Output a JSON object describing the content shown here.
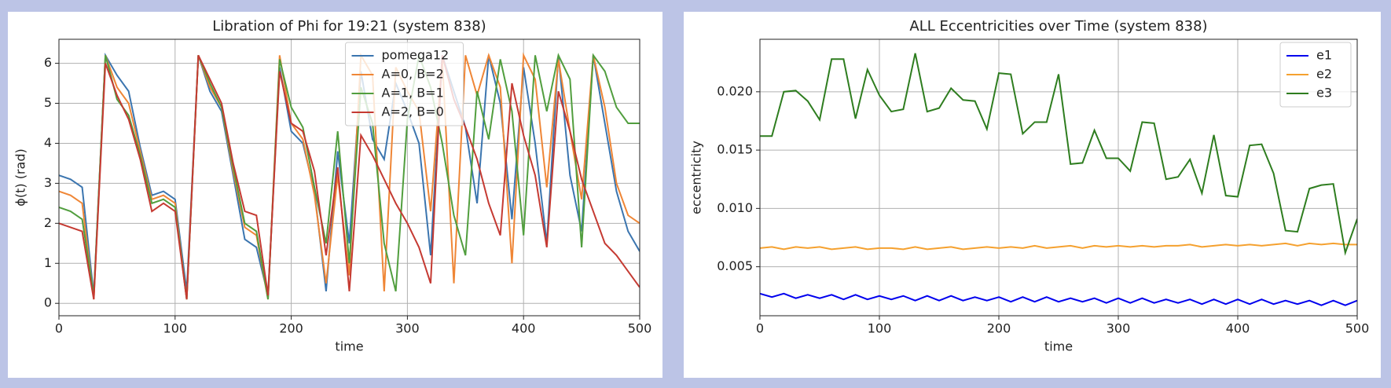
{
  "chart_data": [
    {
      "type": "line",
      "title": "Libration of Phi for 19:21 (system 838)",
      "xlabel": "time",
      "ylabel": "ϕ(t) (rad)",
      "x": [
        0,
        10,
        20,
        30,
        40,
        50,
        60,
        70,
        80,
        90,
        100,
        110,
        120,
        130,
        140,
        150,
        160,
        170,
        180,
        190,
        200,
        210,
        220,
        230,
        240,
        250,
        260,
        270,
        280,
        290,
        300,
        310,
        320,
        330,
        340,
        350,
        360,
        370,
        380,
        390,
        400,
        410,
        420,
        430,
        440,
        450,
        460,
        470,
        480,
        490,
        500
      ],
      "series": [
        {
          "name": "pomega12",
          "color": "#3b75af",
          "values": [
            3.2,
            3.1,
            2.9,
            0.2,
            6.2,
            5.7,
            5.3,
            3.9,
            2.7,
            2.8,
            2.6,
            0.3,
            6.2,
            5.3,
            4.8,
            3.2,
            1.6,
            1.4,
            0.2,
            5.9,
            4.3,
            4.0,
            2.8,
            0.3,
            3.8,
            1.5,
            5.8,
            4.1,
            3.6,
            5.5,
            4.8,
            4.0,
            1.2,
            6.2,
            5.3,
            4.4,
            2.5,
            6.2,
            5.0,
            2.1,
            5.9,
            4.0,
            1.5,
            6.2,
            3.2,
            1.8,
            6.2,
            4.5,
            2.8,
            1.8,
            1.3
          ]
        },
        {
          "name": "A=0, B=2",
          "color": "#ef8636",
          "values": [
            2.8,
            2.7,
            2.5,
            0.1,
            6.2,
            5.4,
            5.0,
            3.8,
            2.6,
            2.7,
            2.5,
            0.1,
            6.2,
            5.4,
            4.9,
            3.3,
            1.9,
            1.7,
            0.1,
            6.2,
            4.5,
            4.1,
            2.7,
            0.5,
            3.2,
            0.7,
            6.2,
            5.7,
            0.3,
            5.9,
            5.3,
            4.8,
            2.3,
            6.1,
            0.5,
            6.2,
            5.2,
            6.2,
            5.4,
            1.0,
            6.2,
            5.6,
            2.9,
            6.1,
            4.3,
            2.6,
            6.2,
            4.9,
            3.0,
            2.2,
            2.0
          ]
        },
        {
          "name": "A=1, B=1",
          "color": "#519e3e",
          "values": [
            2.4,
            2.3,
            2.1,
            0.2,
            6.2,
            5.1,
            4.7,
            3.7,
            2.5,
            2.6,
            2.4,
            0.1,
            6.2,
            5.5,
            4.9,
            3.4,
            2.0,
            1.8,
            0.1,
            6.1,
            4.9,
            4.4,
            2.9,
            1.5,
            4.3,
            1.0,
            5.4,
            4.5,
            1.5,
            0.3,
            4.6,
            6.2,
            5.4,
            4.0,
            2.2,
            1.2,
            5.3,
            4.1,
            6.1,
            4.8,
            1.7,
            6.2,
            4.8,
            6.2,
            5.6,
            1.4,
            6.2,
            5.8,
            4.9,
            4.5,
            4.5
          ]
        },
        {
          "name": "A=2, B=0",
          "color": "#c53a32",
          "values": [
            2.0,
            1.9,
            1.8,
            0.1,
            6.0,
            5.2,
            4.6,
            3.6,
            2.3,
            2.5,
            2.3,
            0.1,
            6.2,
            5.6,
            5.0,
            3.5,
            2.3,
            2.2,
            0.2,
            5.8,
            4.5,
            4.3,
            3.3,
            1.2,
            3.4,
            0.3,
            4.2,
            3.7,
            3.1,
            2.5,
            2.0,
            1.4,
            0.5,
            6.2,
            5.1,
            4.4,
            3.6,
            2.5,
            1.7,
            5.5,
            4.2,
            3.2,
            1.4,
            5.3,
            4.3,
            3.1,
            2.3,
            1.5,
            1.2,
            0.8,
            0.4
          ]
        }
      ],
      "xlim": [
        0,
        500
      ],
      "xticks": [
        0,
        100,
        200,
        300,
        400,
        500
      ],
      "ylim": [
        -0.31,
        6.6
      ],
      "yticks": [
        0,
        1,
        2,
        3,
        4,
        5,
        6
      ],
      "grid": true,
      "legend": "upper center"
    },
    {
      "type": "line",
      "title": "ALL Eccentricities over Time (system 838)",
      "xlabel": "time",
      "ylabel": "eccentricity",
      "x": [
        0,
        10,
        20,
        30,
        40,
        50,
        60,
        70,
        80,
        90,
        100,
        110,
        120,
        130,
        140,
        150,
        160,
        170,
        180,
        190,
        200,
        210,
        220,
        230,
        240,
        250,
        260,
        270,
        280,
        290,
        300,
        310,
        320,
        330,
        340,
        350,
        360,
        370,
        380,
        390,
        400,
        410,
        420,
        430,
        440,
        450,
        460,
        470,
        480,
        490,
        500
      ],
      "series": [
        {
          "name": "e1",
          "color": "#0000ee",
          "values": [
            0.0027,
            0.0024,
            0.0027,
            0.0023,
            0.0026,
            0.0023,
            0.0026,
            0.0022,
            0.0026,
            0.0022,
            0.0025,
            0.0022,
            0.0025,
            0.0021,
            0.0025,
            0.0021,
            0.0025,
            0.0021,
            0.0024,
            0.0021,
            0.0024,
            0.002,
            0.0024,
            0.002,
            0.0024,
            0.002,
            0.0023,
            0.002,
            0.0023,
            0.0019,
            0.0023,
            0.0019,
            0.0023,
            0.0019,
            0.0022,
            0.0019,
            0.0022,
            0.0018,
            0.0022,
            0.0018,
            0.0022,
            0.0018,
            0.0022,
            0.0018,
            0.0021,
            0.0018,
            0.0021,
            0.0017,
            0.0021,
            0.0017,
            0.0021
          ]
        },
        {
          "name": "e2",
          "color": "#f5a12f",
          "values": [
            0.0066,
            0.0067,
            0.0065,
            0.0067,
            0.0066,
            0.0067,
            0.0065,
            0.0066,
            0.0067,
            0.0065,
            0.0066,
            0.0066,
            0.0065,
            0.0067,
            0.0065,
            0.0066,
            0.0067,
            0.0065,
            0.0066,
            0.0067,
            0.0066,
            0.0067,
            0.0066,
            0.0068,
            0.0066,
            0.0067,
            0.0068,
            0.0066,
            0.0068,
            0.0067,
            0.0068,
            0.0067,
            0.0068,
            0.0067,
            0.0068,
            0.0068,
            0.0069,
            0.0067,
            0.0068,
            0.0069,
            0.0068,
            0.0069,
            0.0068,
            0.0069,
            0.007,
            0.0068,
            0.007,
            0.0069,
            0.007,
            0.0069,
            0.0069
          ]
        },
        {
          "name": "e3",
          "color": "#2e7d1f",
          "values": [
            0.0162,
            0.0162,
            0.02,
            0.0201,
            0.0192,
            0.0176,
            0.0228,
            0.0228,
            0.0177,
            0.0219,
            0.0197,
            0.0183,
            0.0185,
            0.0233,
            0.0183,
            0.0186,
            0.0203,
            0.0193,
            0.0192,
            0.0168,
            0.0216,
            0.0215,
            0.0164,
            0.0174,
            0.0174,
            0.0215,
            0.0138,
            0.0139,
            0.0167,
            0.0143,
            0.0143,
            0.0132,
            0.0174,
            0.0173,
            0.0125,
            0.0127,
            0.0142,
            0.0113,
            0.0163,
            0.0111,
            0.011,
            0.0154,
            0.0155,
            0.013,
            0.0081,
            0.008,
            0.0117,
            0.012,
            0.0121,
            0.0062,
            0.0091
          ]
        }
      ],
      "xlim": [
        0,
        500
      ],
      "xticks": [
        0,
        100,
        200,
        300,
        400,
        500
      ],
      "ylim": [
        0.0008,
        0.0245
      ],
      "yticks": [
        0.005,
        {
          "value": 0.01,
          "label": "0.010"
        },
        0.015,
        {
          "value": 0.02,
          "label": "0.020"
        }
      ],
      "grid": true,
      "legend": "upper right"
    }
  ]
}
